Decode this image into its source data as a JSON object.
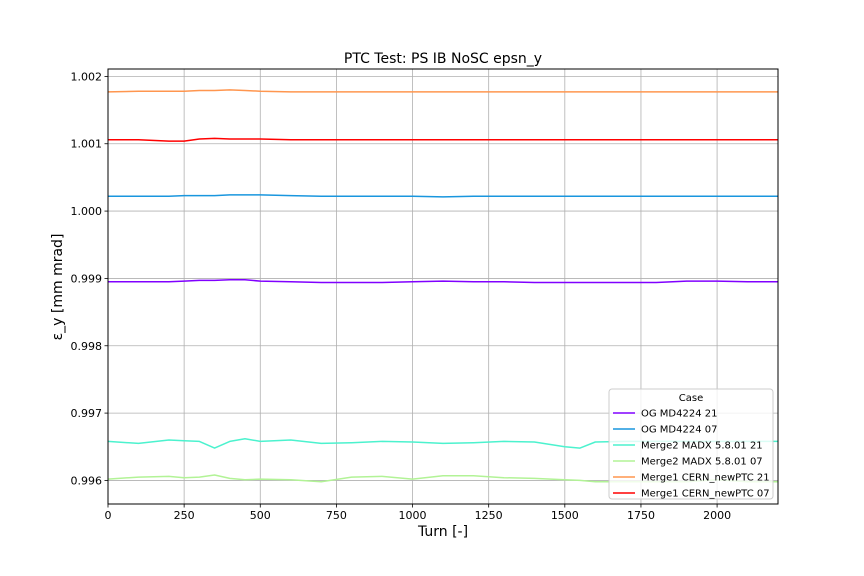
{
  "chart_data": {
    "type": "line",
    "title": "PTC Test: PS IB NoSC epsn_y",
    "xlabel": "Turn [-]",
    "ylabel": "ε_y [mm mrad]",
    "xlim": [
      0,
      2200
    ],
    "ylim": [
      0.99565,
      1.00211
    ],
    "xticks": [
      0,
      250,
      500,
      750,
      1000,
      1250,
      1500,
      1750,
      2000
    ],
    "yticks": [
      0.996,
      0.997,
      0.998,
      0.999,
      1.0,
      1.001,
      1.002
    ],
    "ytick_labels": [
      "0.996",
      "0.997",
      "0.998",
      "0.999",
      "1.000",
      "1.001",
      "1.002"
    ],
    "grid": true,
    "legend": {
      "title": "Case",
      "position": "lower-right"
    },
    "x": [
      0,
      100,
      200,
      250,
      300,
      350,
      400,
      450,
      500,
      600,
      700,
      800,
      900,
      1000,
      1100,
      1200,
      1300,
      1400,
      1500,
      1550,
      1600,
      1700,
      1800,
      1900,
      2000,
      2100,
      2200
    ],
    "series": [
      {
        "name": "OG MD4224 21",
        "color": "#8000ff",
        "values": [
          0.99895,
          0.99895,
          0.99895,
          0.99896,
          0.99897,
          0.99897,
          0.99898,
          0.99898,
          0.99896,
          0.99895,
          0.99894,
          0.99894,
          0.99894,
          0.99895,
          0.99896,
          0.99895,
          0.99895,
          0.99894,
          0.99894,
          0.99894,
          0.99894,
          0.99894,
          0.99894,
          0.99896,
          0.99896,
          0.99895,
          0.99895
        ]
      },
      {
        "name": "OG MD4224 07",
        "color": "#1996de",
        "values": [
          1.00022,
          1.00022,
          1.00022,
          1.00023,
          1.00023,
          1.00023,
          1.00024,
          1.00024,
          1.00024,
          1.00023,
          1.00022,
          1.00022,
          1.00022,
          1.00022,
          1.00021,
          1.00022,
          1.00022,
          1.00022,
          1.00022,
          1.00022,
          1.00022,
          1.00022,
          1.00022,
          1.00022,
          1.00022,
          1.00022,
          1.00022
        ]
      },
      {
        "name": "Merge2 MADX 5.8.01 21",
        "color": "#4cf2ce",
        "values": [
          0.99658,
          0.99655,
          0.9966,
          0.99659,
          0.99658,
          0.99648,
          0.99658,
          0.99662,
          0.99658,
          0.9966,
          0.99655,
          0.99656,
          0.99658,
          0.99657,
          0.99655,
          0.99656,
          0.99658,
          0.99657,
          0.9965,
          0.99648,
          0.99657,
          0.99658,
          0.99658,
          0.99658,
          0.99658,
          0.99658,
          0.99658
        ]
      },
      {
        "name": "Merge2 MADX 5.8.01 07",
        "color": "#b2f396",
        "values": [
          0.99602,
          0.99605,
          0.99606,
          0.99604,
          0.99605,
          0.99608,
          0.99603,
          0.99601,
          0.99602,
          0.99601,
          0.99598,
          0.99605,
          0.99606,
          0.99602,
          0.99607,
          0.99607,
          0.99604,
          0.99603,
          0.99601,
          0.996,
          0.99598,
          0.99598,
          0.99598,
          0.99598,
          0.99601,
          0.99598,
          0.99598
        ]
      },
      {
        "name": "Merge1 CERN_newPTC 21",
        "color": "#ff964f",
        "values": [
          1.00177,
          1.00178,
          1.00178,
          1.00178,
          1.00179,
          1.00179,
          1.0018,
          1.00179,
          1.00178,
          1.00177,
          1.00177,
          1.00177,
          1.00177,
          1.00177,
          1.00177,
          1.00177,
          1.00177,
          1.00177,
          1.00177,
          1.00177,
          1.00177,
          1.00177,
          1.00177,
          1.00177,
          1.00177,
          1.00177,
          1.00177
        ]
      },
      {
        "name": "Merge1 CERN_newPTC 07",
        "color": "#ff0000",
        "values": [
          1.00106,
          1.00106,
          1.00104,
          1.00104,
          1.00107,
          1.00108,
          1.00107,
          1.00107,
          1.00107,
          1.00106,
          1.00106,
          1.00106,
          1.00106,
          1.00106,
          1.00106,
          1.00106,
          1.00106,
          1.00106,
          1.00106,
          1.00106,
          1.00106,
          1.00106,
          1.00106,
          1.00106,
          1.00106,
          1.00106,
          1.00106
        ]
      }
    ]
  }
}
